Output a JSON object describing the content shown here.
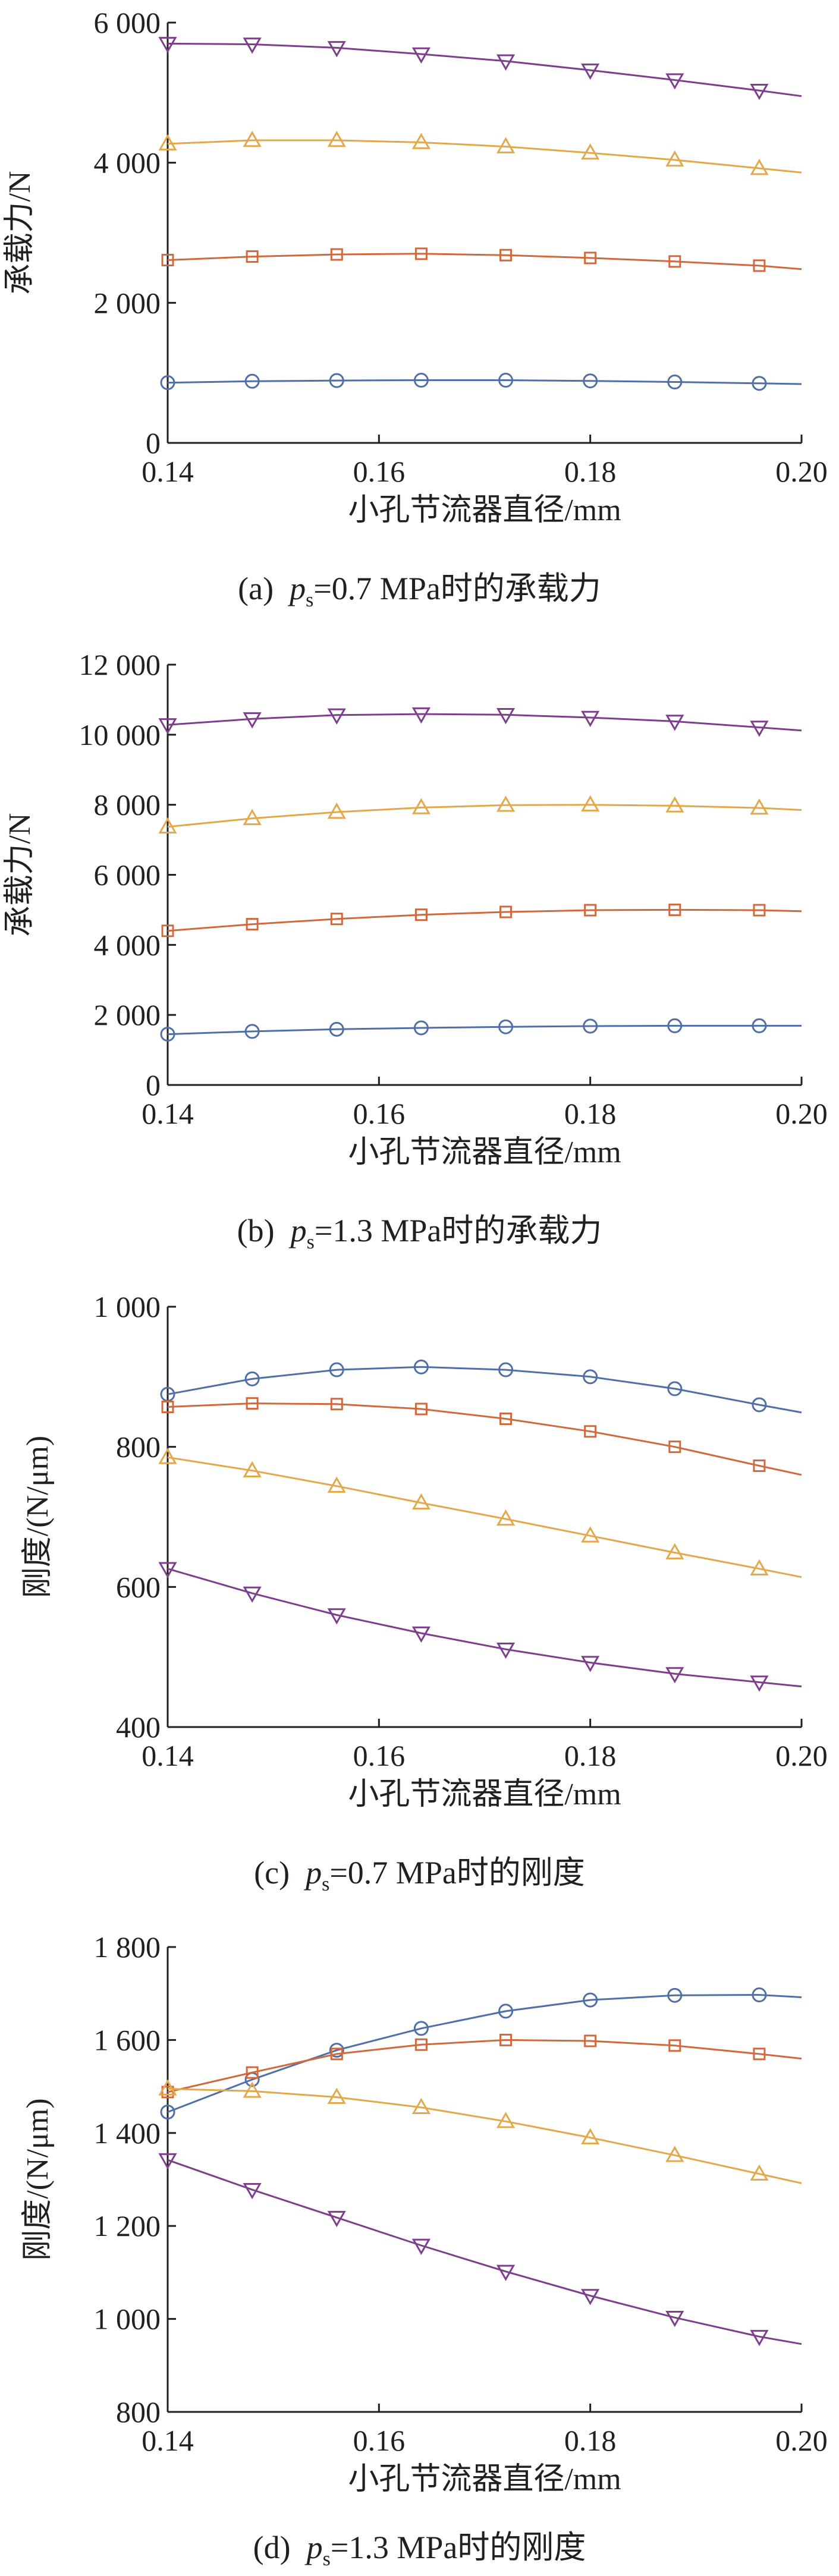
{
  "chart_data": [
    {
      "type": "line",
      "caption": {
        "label": "(a)",
        "symbol": "p",
        "sub": "s",
        "rest": "=0.7 MPa时的承载力"
      },
      "xlabel": "小孔节流器直径/mm",
      "ylabel": "承载力/N",
      "xlim": [
        0.14,
        0.2
      ],
      "ylim": [
        0,
        6000
      ],
      "xticks": [
        "0.14",
        "0.16",
        "0.18",
        "0.20"
      ],
      "yticks": [
        {
          "v": 0,
          "label": "0"
        },
        {
          "v": 2000,
          "label": "2 000"
        },
        {
          "v": 4000,
          "label": "4 000"
        },
        {
          "v": 6000,
          "label": "6 000"
        }
      ],
      "x": [
        0.14,
        0.148,
        0.156,
        0.164,
        0.172,
        0.18,
        0.188,
        0.196
      ],
      "series": [
        {
          "marker": "circle",
          "color": "#4f6fa6",
          "values": [
            860,
            880,
            890,
            895,
            895,
            885,
            870,
            850
          ],
          "end": 840
        },
        {
          "marker": "square",
          "color": "#cf6a3f",
          "values": [
            2610,
            2660,
            2690,
            2700,
            2680,
            2640,
            2590,
            2530
          ],
          "end": 2480
        },
        {
          "marker": "triangle-up",
          "color": "#e3a84a",
          "values": [
            4270,
            4320,
            4320,
            4290,
            4230,
            4140,
            4040,
            3920
          ],
          "end": 3860
        },
        {
          "marker": "triangle-down",
          "color": "#7d3f8c",
          "values": [
            5700,
            5690,
            5640,
            5550,
            5450,
            5320,
            5180,
            5030
          ],
          "end": 4950
        }
      ]
    },
    {
      "type": "line",
      "caption": {
        "label": "(b)",
        "symbol": "p",
        "sub": "s",
        "rest": "=1.3 MPa时的承载力"
      },
      "xlabel": "小孔节流器直径/mm",
      "ylabel": "承载力/N",
      "xlim": [
        0.14,
        0.2
      ],
      "ylim": [
        0,
        12000
      ],
      "xticks": [
        "0.14",
        "0.16",
        "0.18",
        "0.20"
      ],
      "yticks": [
        {
          "v": 0,
          "label": "0"
        },
        {
          "v": 2000,
          "label": "2 000"
        },
        {
          "v": 4000,
          "label": "4 000"
        },
        {
          "v": 6000,
          "label": "6 000"
        },
        {
          "v": 8000,
          "label": "8 000"
        },
        {
          "v": 10000,
          "label": "10 000"
        },
        {
          "v": 12000,
          "label": "12 000"
        }
      ],
      "x": [
        0.14,
        0.148,
        0.156,
        0.164,
        0.172,
        0.18,
        0.188,
        0.196
      ],
      "series": [
        {
          "marker": "circle",
          "color": "#4f6fa6",
          "values": [
            1450,
            1530,
            1590,
            1630,
            1660,
            1680,
            1690,
            1690
          ],
          "end": 1690
        },
        {
          "marker": "square",
          "color": "#cf6a3f",
          "values": [
            4400,
            4590,
            4740,
            4860,
            4940,
            4990,
            5000,
            4990
          ],
          "end": 4960
        },
        {
          "marker": "triangle-up",
          "color": "#e3a84a",
          "values": [
            7370,
            7610,
            7790,
            7920,
            7990,
            8000,
            7970,
            7910
          ],
          "end": 7850
        },
        {
          "marker": "triangle-down",
          "color": "#7d3f8c",
          "values": [
            10280,
            10450,
            10560,
            10590,
            10570,
            10490,
            10380,
            10210
          ],
          "end": 10120
        }
      ]
    },
    {
      "type": "line",
      "caption": {
        "label": "(c)",
        "symbol": "p",
        "sub": "s",
        "rest": "=0.7 MPa时的刚度"
      },
      "xlabel": "小孔节流器直径/mm",
      "ylabel": "刚度/(N/μm)",
      "xlim": [
        0.14,
        0.2
      ],
      "ylim": [
        400,
        1000
      ],
      "xticks": [
        "0.14",
        "0.16",
        "0.18",
        "0.20"
      ],
      "yticks": [
        {
          "v": 400,
          "label": "400"
        },
        {
          "v": 600,
          "label": "600"
        },
        {
          "v": 800,
          "label": "800"
        },
        {
          "v": 1000,
          "label": "1 000"
        }
      ],
      "x": [
        0.14,
        0.148,
        0.156,
        0.164,
        0.172,
        0.18,
        0.188,
        0.196
      ],
      "series": [
        {
          "marker": "circle",
          "color": "#4f6fa6",
          "values": [
            875,
            897,
            910,
            914,
            910,
            900,
            883,
            860
          ],
          "end": 849
        },
        {
          "marker": "square",
          "color": "#cf6a3f",
          "values": [
            857,
            862,
            861,
            854,
            840,
            822,
            800,
            773
          ],
          "end": 760
        },
        {
          "marker": "triangle-up",
          "color": "#e3a84a",
          "values": [
            785,
            766,
            744,
            720,
            697,
            673,
            649,
            626
          ],
          "end": 614
        },
        {
          "marker": "triangle-down",
          "color": "#7d3f8c",
          "values": [
            626,
            591,
            560,
            534,
            511,
            492,
            476,
            464
          ],
          "end": 458
        }
      ]
    },
    {
      "type": "line",
      "caption": {
        "label": "(d)",
        "symbol": "p",
        "sub": "s",
        "rest": "=1.3 MPa时的刚度"
      },
      "xlabel": "小孔节流器直径/mm",
      "ylabel": "刚度/(N/μm)",
      "xlim": [
        0.14,
        0.2
      ],
      "ylim": [
        800,
        1800
      ],
      "xticks": [
        "0.14",
        "0.16",
        "0.18",
        "0.20"
      ],
      "yticks": [
        {
          "v": 800,
          "label": "800"
        },
        {
          "v": 1000,
          "label": "1 000"
        },
        {
          "v": 1200,
          "label": "1 200"
        },
        {
          "v": 1400,
          "label": "1 400"
        },
        {
          "v": 1600,
          "label": "1 600"
        },
        {
          "v": 1800,
          "label": "1 800"
        }
      ],
      "x": [
        0.14,
        0.148,
        0.156,
        0.164,
        0.172,
        0.18,
        0.188,
        0.196
      ],
      "series": [
        {
          "marker": "circle",
          "color": "#4f6fa6",
          "values": [
            1445,
            1515,
            1578,
            1625,
            1662,
            1686,
            1696,
            1697
          ],
          "end": 1692
        },
        {
          "marker": "square",
          "color": "#cf6a3f",
          "values": [
            1488,
            1530,
            1570,
            1590,
            1600,
            1598,
            1588,
            1570
          ],
          "end": 1560
        },
        {
          "marker": "triangle-up",
          "color": "#e3a84a",
          "values": [
            1495,
            1490,
            1477,
            1455,
            1425,
            1390,
            1352,
            1312
          ],
          "end": 1292
        },
        {
          "marker": "triangle-down",
          "color": "#7d3f8c",
          "values": [
            1342,
            1278,
            1218,
            1158,
            1102,
            1050,
            1003,
            962
          ],
          "end": 946
        }
      ]
    }
  ]
}
